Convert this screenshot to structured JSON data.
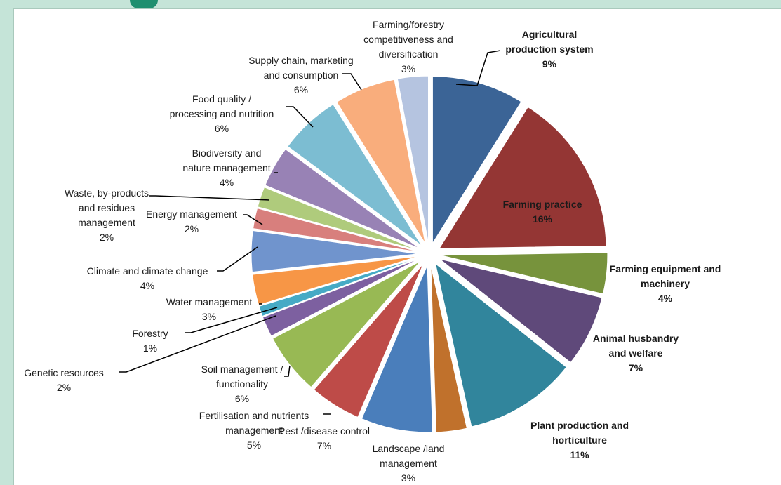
{
  "chart_data": {
    "type": "pie",
    "title": "",
    "slices": [
      {
        "label": [
          "Agricultural",
          "production system"
        ],
        "value": 9,
        "display": "9%",
        "color": "#3b6496",
        "bold": true
      },
      {
        "label": [
          "Farming practice"
        ],
        "value": 16,
        "display": "16%",
        "color": "#943634",
        "bold": true
      },
      {
        "label": [
          "Farming equipment and",
          "machinery"
        ],
        "value": 4,
        "display": "4%",
        "color": "#77933c",
        "bold": true
      },
      {
        "label": [
          "Animal husbandry",
          "and welfare"
        ],
        "value": 7,
        "display": "7%",
        "color": "#5f497a",
        "bold": true
      },
      {
        "label": [
          "Plant production and",
          "horticulture"
        ],
        "value": 11,
        "display": "11%",
        "color": "#31859c",
        "bold": true
      },
      {
        "label": [
          "Landscape /land",
          "management"
        ],
        "value": 3,
        "display": "3%",
        "color": "#c0712c",
        "bold": false
      },
      {
        "label": [
          "Pest /disease control"
        ],
        "value": 7,
        "display": "7%",
        "color": "#4a7ebb",
        "bold": false
      },
      {
        "label": [
          "Fertilisation and nutrients",
          "management"
        ],
        "value": 5,
        "display": "5%",
        "color": "#be4b48",
        "bold": false
      },
      {
        "label": [
          "Soil management /",
          "functionality"
        ],
        "value": 6,
        "display": "6%",
        "color": "#98b954",
        "bold": false
      },
      {
        "label": [
          "Genetic resources"
        ],
        "value": 2,
        "display": "2%",
        "color": "#7d60a0",
        "bold": false
      },
      {
        "label": [
          "Forestry"
        ],
        "value": 1,
        "display": "1%",
        "color": "#46aac5",
        "bold": false
      },
      {
        "label": [
          "Water management"
        ],
        "value": 3,
        "display": "3%",
        "color": "#f79646",
        "bold": false
      },
      {
        "label": [
          "Climate and climate change"
        ],
        "value": 4,
        "display": "4%",
        "color": "#7094cd",
        "bold": false
      },
      {
        "label": [
          "Energy management"
        ],
        "value": 2,
        "display": "2%",
        "color": "#d87f7d",
        "bold": false
      },
      {
        "label": [
          "Waste, by-products",
          "and residues",
          "management"
        ],
        "value": 2,
        "display": "2%",
        "color": "#afcb7c",
        "bold": false
      },
      {
        "label": [
          "Biodiversity and",
          "nature management"
        ],
        "value": 4,
        "display": "4%",
        "color": "#9882b5",
        "bold": false
      },
      {
        "label": [
          "Food quality /",
          "processing and nutrition"
        ],
        "value": 6,
        "display": "6%",
        "color": "#7cbdd2",
        "bold": false
      },
      {
        "label": [
          "Supply chain,  marketing",
          "and consumption"
        ],
        "value": 6,
        "display": "6%",
        "color": "#f9ad7c",
        "bold": false
      },
      {
        "label": [
          "Farming/forestry",
          "competitiveness and",
          "diversification"
        ],
        "value": 3,
        "display": "3%",
        "color": "#b5c4e0",
        "bold": false
      }
    ]
  }
}
